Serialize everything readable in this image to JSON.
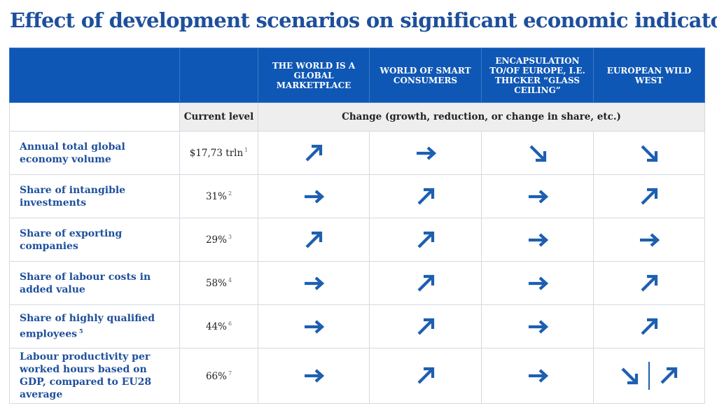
{
  "title": "Effect of development scenarios on significant economic indicators",
  "columns": [
    "THE WORLD IS A GLOBAL MARKETPLACE",
    "WORLD OF SMART CONSUMERS",
    "ENCAPSULATION TO/OF EUROPE, I.E. THICKER “GLASS CEILING”",
    "EUROPEAN WILD WEST"
  ],
  "subheader": {
    "current_level": "Current level",
    "change": "Change (growth, reduction, or change in share, etc.)"
  },
  "rows": [
    {
      "label": "Annual total global economy volume",
      "level": "$17,73 trln",
      "level_note": "1",
      "label_note": "",
      "arrows": [
        [
          "up-right"
        ],
        [
          "right"
        ],
        [
          "down-right"
        ],
        [
          "down-right"
        ]
      ]
    },
    {
      "label": "Share of intangible investments",
      "level": "31%",
      "level_note": "2",
      "label_note": "",
      "arrows": [
        [
          "right"
        ],
        [
          "up-right"
        ],
        [
          "right"
        ],
        [
          "up-right"
        ]
      ]
    },
    {
      "label": "Share of exporting companies",
      "level": "29%",
      "level_note": "3",
      "label_note": "",
      "arrows": [
        [
          "up-right"
        ],
        [
          "up-right"
        ],
        [
          "right"
        ],
        [
          "right"
        ]
      ]
    },
    {
      "label": "Share of labour costs in added value",
      "level": "58%",
      "level_note": "4",
      "label_note": "",
      "arrows": [
        [
          "right"
        ],
        [
          "up-right"
        ],
        [
          "right"
        ],
        [
          "up-right"
        ]
      ]
    },
    {
      "label": "Share of highly qualified employees",
      "level": "44%",
      "level_note": "6",
      "label_note": "5",
      "arrows": [
        [
          "right"
        ],
        [
          "up-right"
        ],
        [
          "right"
        ],
        [
          "up-right"
        ]
      ]
    },
    {
      "label": "Labour productivity per worked hours based on GDP, compared to EU28 average",
      "level": "66%",
      "level_note": "7",
      "label_note": "",
      "arrows": [
        [
          "right"
        ],
        [
          "up-right"
        ],
        [
          "right"
        ],
        [
          "down-right",
          "up-right"
        ]
      ]
    }
  ],
  "colors": {
    "header_bg": "#0f57b5",
    "arrow": "#1d5fb0",
    "title": "#1d4f9c"
  }
}
